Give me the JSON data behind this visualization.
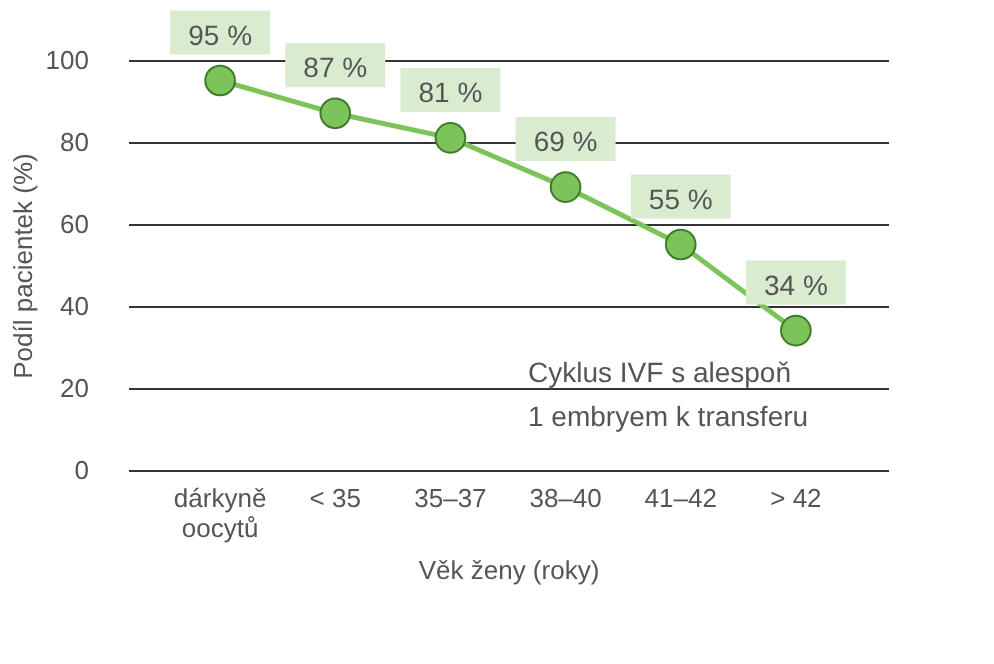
{
  "chart_data": {
    "type": "line",
    "xlabel": "Věk ženy (roky)",
    "ylabel": "Podíl pacientek (%)",
    "categories": [
      "dárkyně\noocytů",
      "< 35",
      "35–37",
      "38–40",
      "41–42",
      "> 42"
    ],
    "series": [
      {
        "color": "#7cc45a",
        "values": [
          95,
          87,
          81,
          69,
          55,
          34
        ]
      }
    ],
    "value_labels": [
      "95 %",
      "87 %",
      "81 %",
      "69 %",
      "55 %",
      "34 %"
    ],
    "ylim": [
      0,
      100
    ],
    "yticks": [
      0,
      20,
      40,
      60,
      80,
      100
    ],
    "grid": "y",
    "marker": "circle",
    "line_style": "solid",
    "annotations": [
      "Cyklus IVF s alespoň\n1 embryem k transferu"
    ]
  }
}
